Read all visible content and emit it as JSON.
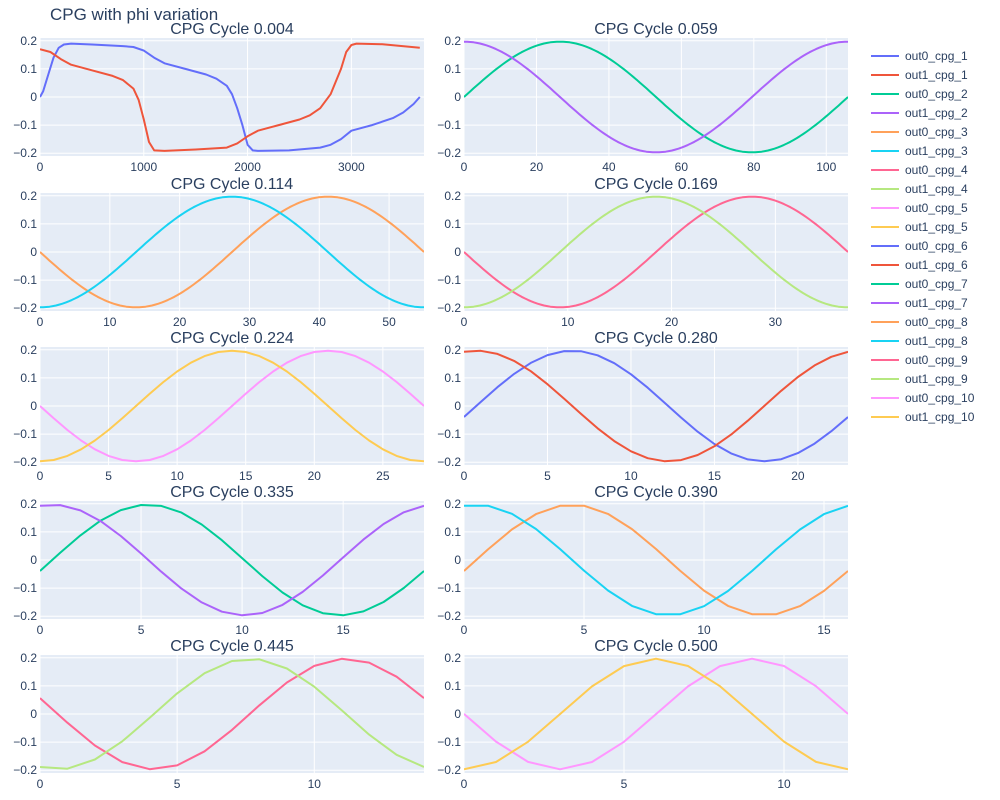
{
  "title": "CPG with phi variation",
  "colors": {
    "plot_bg": "#e5ecf6",
    "grid": "#ffffff",
    "text": "#2a3f5f"
  },
  "legend": {
    "placement": "right",
    "entries": [
      {
        "name": "out0_cpg_1",
        "color": "#636efa"
      },
      {
        "name": "out1_cpg_1",
        "color": "#ef553b"
      },
      {
        "name": "out0_cpg_2",
        "color": "#00cc96"
      },
      {
        "name": "out1_cpg_2",
        "color": "#ab63fa"
      },
      {
        "name": "out0_cpg_3",
        "color": "#ffa15a"
      },
      {
        "name": "out1_cpg_3",
        "color": "#19d3f3"
      },
      {
        "name": "out0_cpg_4",
        "color": "#ff6692"
      },
      {
        "name": "out1_cpg_4",
        "color": "#b6e880"
      },
      {
        "name": "out0_cpg_5",
        "color": "#ff97ff"
      },
      {
        "name": "out1_cpg_5",
        "color": "#fecb52"
      },
      {
        "name": "out0_cpg_6",
        "color": "#636efa"
      },
      {
        "name": "out1_cpg_6",
        "color": "#ef553b"
      },
      {
        "name": "out0_cpg_7",
        "color": "#00cc96"
      },
      {
        "name": "out1_cpg_7",
        "color": "#ab63fa"
      },
      {
        "name": "out0_cpg_8",
        "color": "#ffa15a"
      },
      {
        "name": "out1_cpg_8",
        "color": "#19d3f3"
      },
      {
        "name": "out0_cpg_9",
        "color": "#ff6692"
      },
      {
        "name": "out1_cpg_9",
        "color": "#b6e880"
      },
      {
        "name": "out0_cpg_10",
        "color": "#ff97ff"
      },
      {
        "name": "out1_cpg_10",
        "color": "#fecb52"
      }
    ]
  },
  "chart_data": [
    {
      "type": "line",
      "title": "CPG Cycle 0.004",
      "xlim": [
        0,
        3700
      ],
      "ylim": [
        -0.21,
        0.21
      ],
      "xticks": [
        0,
        1000,
        2000,
        3000
      ],
      "xtick_labels": [
        "0",
        "1000",
        "2000",
        "3000"
      ],
      "yticks": [
        -0.2,
        -0.1,
        0,
        0.1,
        0.2
      ],
      "ytick_labels": [
        "−0.2",
        "−0.1",
        "0",
        "0.1",
        "0.2"
      ],
      "series": [
        {
          "name": "out0_cpg_1",
          "color": "#636efa",
          "points": [
            [
              0,
              0
            ],
            [
              30,
              0.02
            ],
            [
              80,
              0.08
            ],
            [
              130,
              0.14
            ],
            [
              180,
              0.175
            ],
            [
              230,
              0.187
            ],
            [
              300,
              0.19
            ],
            [
              500,
              0.187
            ],
            [
              800,
              0.181
            ],
            [
              900,
              0.178
            ],
            [
              1000,
              0.165
            ],
            [
              1100,
              0.14
            ],
            [
              1200,
              0.12
            ],
            [
              1400,
              0.1
            ],
            [
              1600,
              0.08
            ],
            [
              1700,
              0.065
            ],
            [
              1800,
              0.04
            ],
            [
              1850,
              0.01
            ],
            [
              1900,
              -0.04
            ],
            [
              1950,
              -0.1
            ],
            [
              2000,
              -0.17
            ],
            [
              2050,
              -0.19
            ],
            [
              2100,
              -0.192
            ],
            [
              2400,
              -0.19
            ],
            [
              2700,
              -0.18
            ],
            [
              2800,
              -0.17
            ],
            [
              2900,
              -0.15
            ],
            [
              3000,
              -0.12
            ],
            [
              3200,
              -0.1
            ],
            [
              3400,
              -0.075
            ],
            [
              3500,
              -0.055
            ],
            [
              3600,
              -0.025
            ],
            [
              3660,
              0
            ]
          ]
        },
        {
          "name": "out1_cpg_1",
          "color": "#ef553b",
          "points": [
            [
              0,
              0.17
            ],
            [
              100,
              0.16
            ],
            [
              200,
              0.135
            ],
            [
              300,
              0.115
            ],
            [
              500,
              0.095
            ],
            [
              700,
              0.075
            ],
            [
              800,
              0.06
            ],
            [
              900,
              0.03
            ],
            [
              950,
              -0.01
            ],
            [
              1000,
              -0.08
            ],
            [
              1050,
              -0.16
            ],
            [
              1100,
              -0.19
            ],
            [
              1200,
              -0.192
            ],
            [
              1500,
              -0.187
            ],
            [
              1800,
              -0.18
            ],
            [
              1900,
              -0.165
            ],
            [
              2000,
              -0.14
            ],
            [
              2100,
              -0.12
            ],
            [
              2300,
              -0.1
            ],
            [
              2500,
              -0.08
            ],
            [
              2600,
              -0.065
            ],
            [
              2700,
              -0.04
            ],
            [
              2800,
              0.01
            ],
            [
              2900,
              0.1
            ],
            [
              2950,
              0.16
            ],
            [
              3000,
              0.185
            ],
            [
              3050,
              0.19
            ],
            [
              3300,
              0.188
            ],
            [
              3660,
              0.175
            ]
          ]
        }
      ]
    },
    {
      "type": "line",
      "title": "CPG Cycle 0.059",
      "xlim": [
        0,
        106
      ],
      "ylim": [
        -0.21,
        0.21
      ],
      "xticks": [
        0,
        20,
        40,
        60,
        80,
        100
      ],
      "xtick_labels": [
        "0",
        "20",
        "40",
        "60",
        "80",
        "100"
      ],
      "yticks": [
        -0.2,
        -0.1,
        0,
        0.1,
        0.2
      ],
      "ytick_labels": [
        "−0.2",
        "−0.1",
        "0",
        "0.1",
        "0.2"
      ],
      "series": [
        {
          "name": "out0_cpg_2",
          "color": "#00cc96",
          "fn": "sin",
          "amp": 0.197,
          "period": 106,
          "phase": 0
        },
        {
          "name": "out1_cpg_2",
          "color": "#ab63fa",
          "fn": "sin",
          "amp": 0.197,
          "period": 106,
          "phase": 1.5708
        }
      ]
    },
    {
      "type": "line",
      "title": "CPG Cycle 0.114",
      "xlim": [
        0,
        55
      ],
      "ylim": [
        -0.21,
        0.21
      ],
      "xticks": [
        0,
        10,
        20,
        30,
        40,
        50
      ],
      "xtick_labels": [
        "0",
        "10",
        "20",
        "30",
        "40",
        "50"
      ],
      "yticks": [
        -0.2,
        -0.1,
        0,
        0.1,
        0.2
      ],
      "ytick_labels": [
        "−0.2",
        "−0.1",
        "0",
        "0.1",
        "0.2"
      ],
      "series": [
        {
          "name": "out0_cpg_3",
          "color": "#ffa15a",
          "fn": "sin",
          "amp": 0.197,
          "period": 55,
          "phase": 3.1416
        },
        {
          "name": "out1_cpg_3",
          "color": "#19d3f3",
          "fn": "sin",
          "amp": 0.197,
          "period": 55,
          "phase": 4.7124
        }
      ]
    },
    {
      "type": "line",
      "title": "CPG Cycle 0.169",
      "xlim": [
        0,
        37
      ],
      "ylim": [
        -0.21,
        0.21
      ],
      "xticks": [
        0,
        10,
        20,
        30
      ],
      "xtick_labels": [
        "0",
        "10",
        "20",
        "30"
      ],
      "yticks": [
        -0.2,
        -0.1,
        0,
        0.1,
        0.2
      ],
      "ytick_labels": [
        "−0.2",
        "−0.1",
        "0",
        "0.1",
        "0.2"
      ],
      "series": [
        {
          "name": "out0_cpg_4",
          "color": "#ff6692",
          "fn": "sin",
          "amp": 0.197,
          "period": 37,
          "phase": 3.1416
        },
        {
          "name": "out1_cpg_4",
          "color": "#b6e880",
          "fn": "sin",
          "amp": 0.197,
          "period": 37,
          "phase": 4.7124
        }
      ]
    },
    {
      "type": "line",
      "title": "CPG Cycle 0.224",
      "xlim": [
        0,
        28
      ],
      "ylim": [
        -0.21,
        0.21
      ],
      "xticks": [
        0,
        5,
        10,
        15,
        20,
        25
      ],
      "xtick_labels": [
        "0",
        "5",
        "10",
        "15",
        "20",
        "25"
      ],
      "yticks": [
        -0.2,
        -0.1,
        0,
        0.1,
        0.2
      ],
      "ytick_labels": [
        "−0.2",
        "−0.1",
        "0",
        "0.1",
        "0.2"
      ],
      "series": [
        {
          "name": "out0_cpg_5",
          "color": "#ff97ff",
          "fn": "sin",
          "amp": 0.197,
          "period": 28,
          "phase": 3.1416,
          "step": 1
        },
        {
          "name": "out1_cpg_5",
          "color": "#fecb52",
          "fn": "sin",
          "amp": 0.197,
          "period": 28,
          "phase": 4.7124,
          "step": 1
        }
      ]
    },
    {
      "type": "line",
      "title": "CPG Cycle 0.280",
      "xlim": [
        0,
        23
      ],
      "ylim": [
        -0.21,
        0.21
      ],
      "xticks": [
        0,
        5,
        10,
        15,
        20
      ],
      "xtick_labels": [
        "0",
        "5",
        "10",
        "15",
        "20"
      ],
      "yticks": [
        -0.2,
        -0.1,
        0,
        0.1,
        0.2
      ],
      "ytick_labels": [
        "−0.2",
        "−0.1",
        "0",
        "0.1",
        "0.2"
      ],
      "series": [
        {
          "name": "out0_cpg_6",
          "color": "#636efa",
          "fn": "sin",
          "amp": 0.197,
          "period": 23,
          "phase": -0.2,
          "step": 1
        },
        {
          "name": "out1_cpg_6",
          "color": "#ef553b",
          "fn": "sin",
          "amp": 0.197,
          "period": 23,
          "phase": 1.37,
          "step": 1
        }
      ]
    },
    {
      "type": "line",
      "title": "CPG Cycle 0.335",
      "xlim": [
        0,
        19
      ],
      "ylim": [
        -0.21,
        0.21
      ],
      "xticks": [
        0,
        5,
        10,
        15
      ],
      "xtick_labels": [
        "0",
        "5",
        "10",
        "15"
      ],
      "yticks": [
        -0.2,
        -0.1,
        0,
        0.1,
        0.2
      ],
      "ytick_labels": [
        "−0.2",
        "−0.1",
        "0",
        "0.1",
        "0.2"
      ],
      "series": [
        {
          "name": "out0_cpg_7",
          "color": "#00cc96",
          "fn": "sin",
          "amp": 0.197,
          "period": 19,
          "phase": -0.2,
          "step": 1
        },
        {
          "name": "out1_cpg_7",
          "color": "#ab63fa",
          "fn": "sin",
          "amp": 0.197,
          "period": 19,
          "phase": 1.37,
          "step": 1
        }
      ]
    },
    {
      "type": "line",
      "title": "CPG Cycle 0.390",
      "xlim": [
        0,
        16
      ],
      "ylim": [
        -0.21,
        0.21
      ],
      "xticks": [
        0,
        5,
        10,
        15
      ],
      "xtick_labels": [
        "0",
        "5",
        "10",
        "15"
      ],
      "yticks": [
        -0.2,
        -0.1,
        0,
        0.1,
        0.2
      ],
      "ytick_labels": [
        "−0.2",
        "−0.1",
        "0",
        "0.1",
        "0.2"
      ],
      "series": [
        {
          "name": "out0_cpg_8",
          "color": "#ffa15a",
          "fn": "sin",
          "amp": 0.197,
          "period": 16,
          "phase": -0.2,
          "step": 1
        },
        {
          "name": "out1_cpg_8",
          "color": "#19d3f3",
          "fn": "sin",
          "amp": 0.197,
          "period": 16,
          "phase": 1.37,
          "step": 1
        }
      ]
    },
    {
      "type": "line",
      "title": "CPG Cycle 0.445",
      "xlim": [
        0,
        14
      ],
      "ylim": [
        -0.21,
        0.21
      ],
      "xticks": [
        0,
        5,
        10
      ],
      "xtick_labels": [
        "0",
        "5",
        "10"
      ],
      "yticks": [
        -0.2,
        -0.1,
        0,
        0.1,
        0.2
      ],
      "ytick_labels": [
        "−0.2",
        "−0.1",
        "0",
        "0.1",
        "0.2"
      ],
      "series": [
        {
          "name": "out0_cpg_9",
          "color": "#ff6692",
          "fn": "sin",
          "amp": 0.197,
          "period": 14,
          "phase": 2.85,
          "step": 1
        },
        {
          "name": "out1_cpg_9",
          "color": "#b6e880",
          "fn": "sin",
          "amp": 0.197,
          "period": 14,
          "phase": 4.42,
          "step": 1
        }
      ]
    },
    {
      "type": "line",
      "title": "CPG Cycle 0.500",
      "xlim": [
        0,
        12
      ],
      "ylim": [
        -0.21,
        0.21
      ],
      "xticks": [
        0,
        5,
        10
      ],
      "xtick_labels": [
        "0",
        "5",
        "10"
      ],
      "yticks": [
        -0.2,
        -0.1,
        0,
        0.1,
        0.2
      ],
      "ytick_labels": [
        "−0.2",
        "−0.1",
        "0",
        "0.1",
        "0.2"
      ],
      "series": [
        {
          "name": "out0_cpg_10",
          "color": "#ff97ff",
          "fn": "sin",
          "amp": 0.197,
          "period": 12,
          "phase": 3.14,
          "step": 1
        },
        {
          "name": "out1_cpg_10",
          "color": "#fecb52",
          "fn": "sin",
          "amp": 0.197,
          "period": 12,
          "phase": 4.71,
          "step": 1
        }
      ]
    }
  ]
}
